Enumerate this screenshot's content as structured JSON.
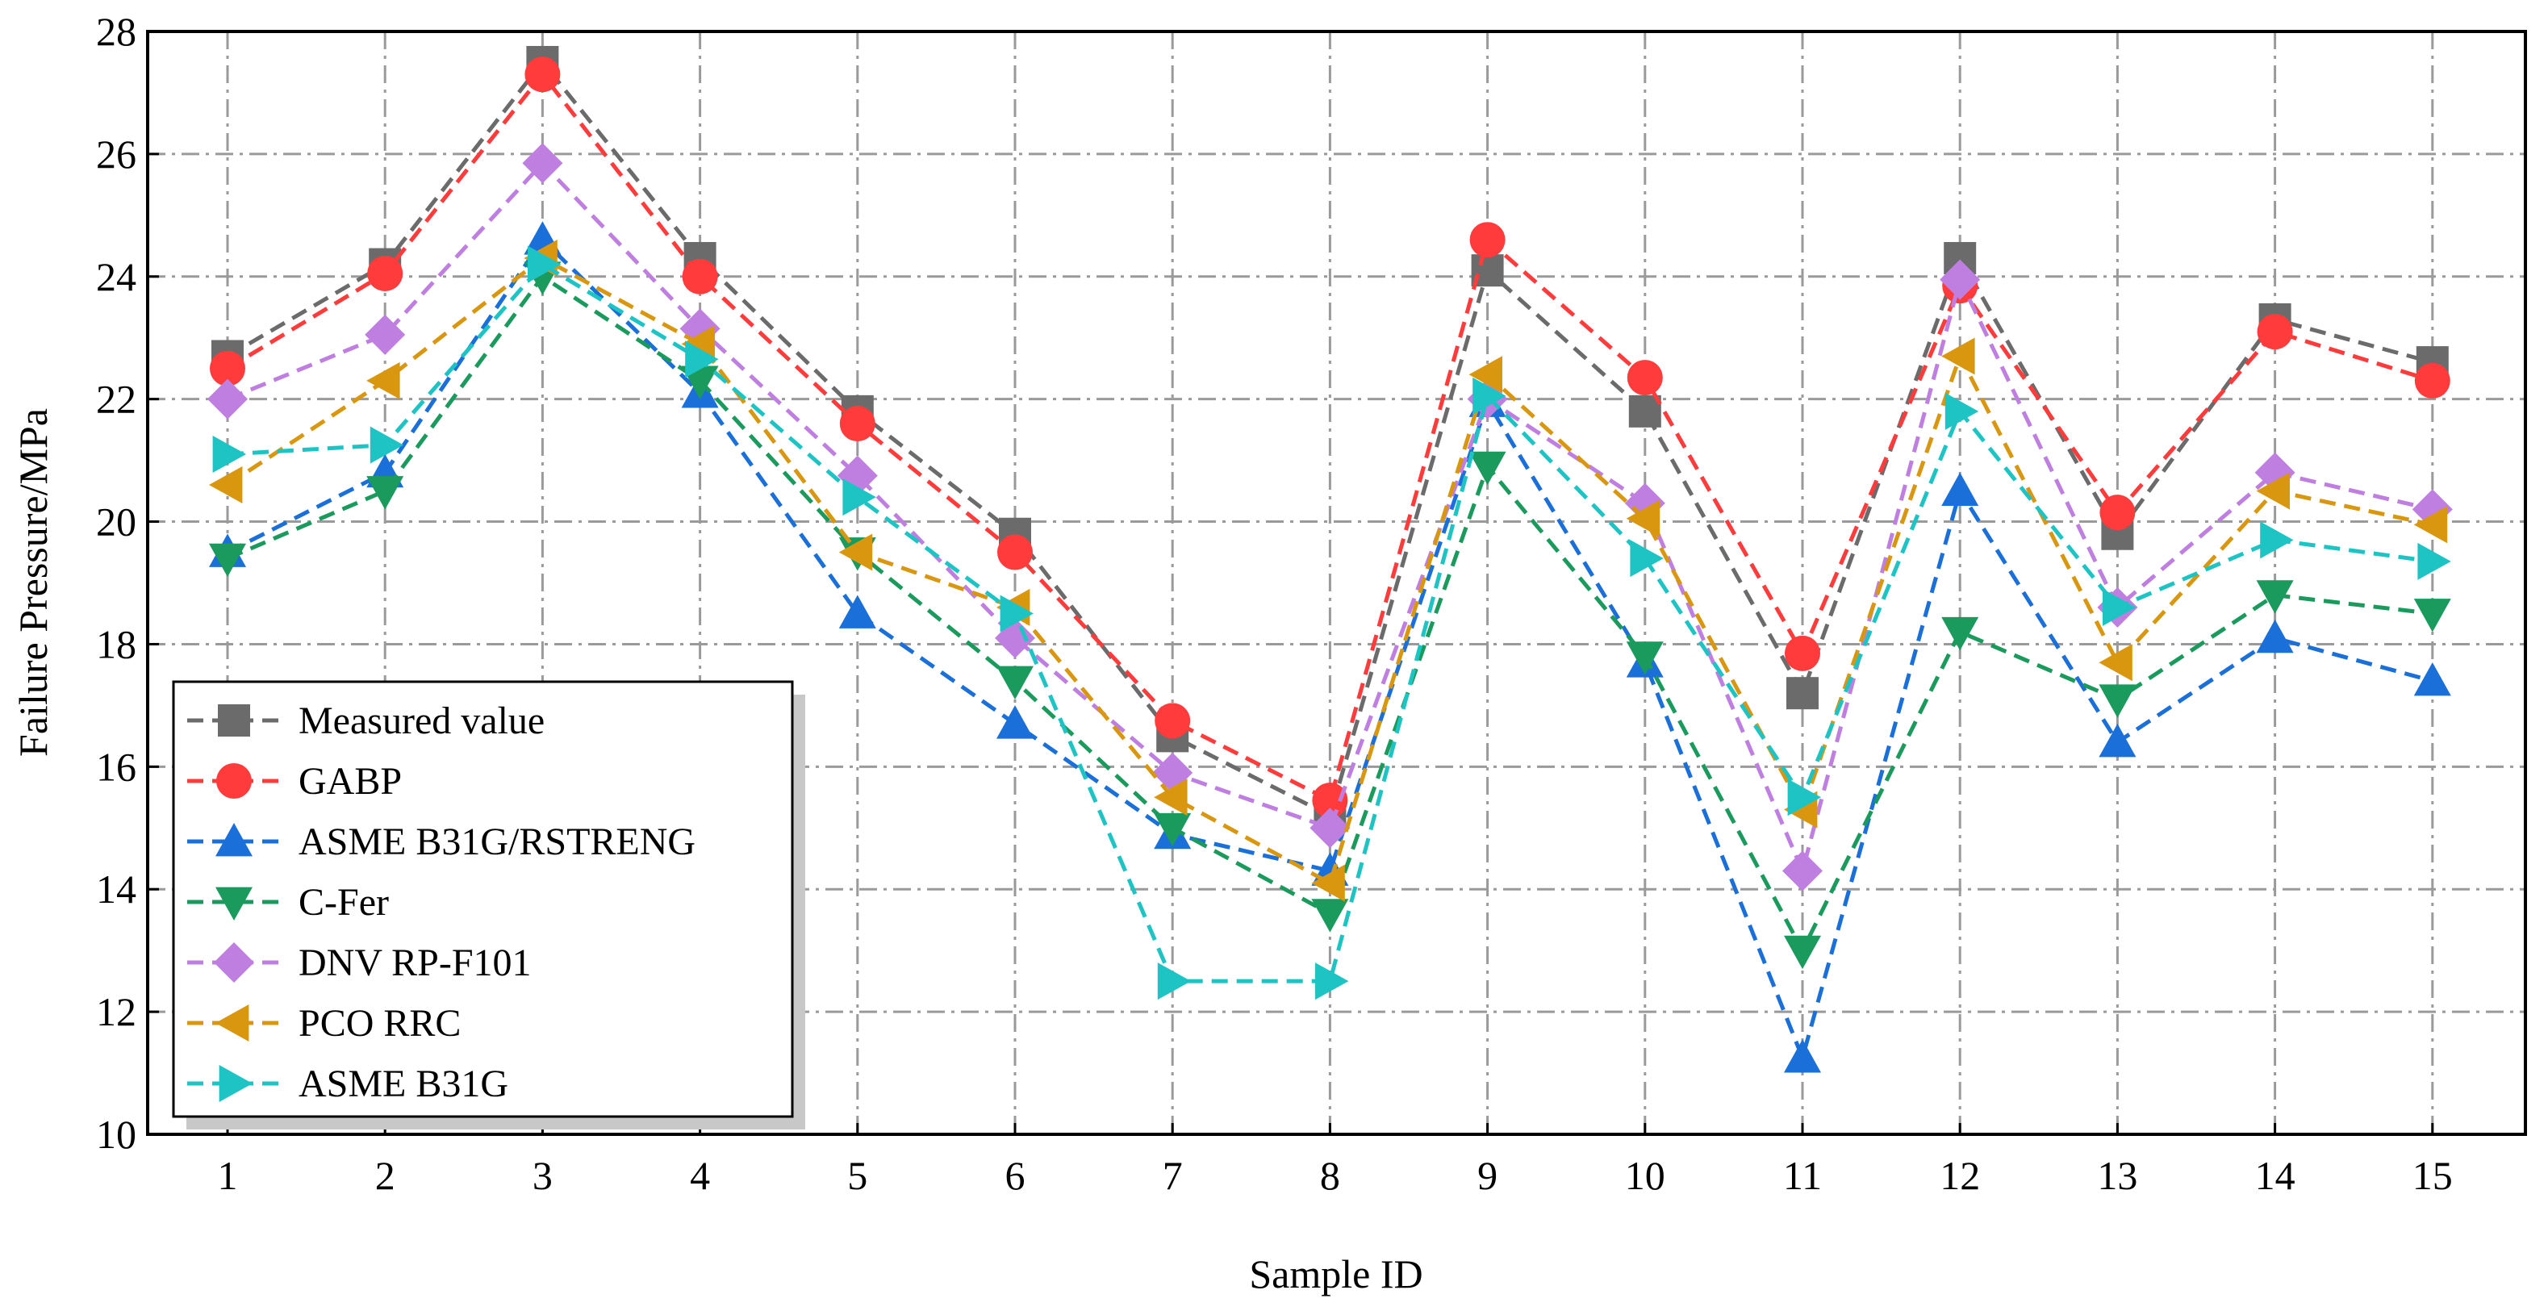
{
  "chart_data": {
    "type": "line",
    "title": "",
    "xlabel": "Sample ID",
    "ylabel": "Failure Pressure/MPa",
    "categories": [
      "1",
      "2",
      "3",
      "4",
      "5",
      "6",
      "7",
      "8",
      "9",
      "10",
      "11",
      "12",
      "13",
      "14",
      "15"
    ],
    "ylim": [
      10,
      28
    ],
    "yticks": [
      "10",
      "12",
      "14",
      "16",
      "18",
      "20",
      "22",
      "24",
      "26",
      "28"
    ],
    "grid": true,
    "legend_position": "bottom-left",
    "series": [
      {
        "name": "Measured value",
        "color": "#6b6b6b",
        "marker": "square",
        "values": [
          22.7,
          24.2,
          27.5,
          24.3,
          21.8,
          19.8,
          16.5,
          15.2,
          24.1,
          21.8,
          17.2,
          24.3,
          19.8,
          23.3,
          22.6
        ]
      },
      {
        "name": "GABP",
        "color": "#ff3b3b",
        "marker": "circle",
        "values": [
          22.5,
          24.05,
          27.3,
          24.0,
          21.6,
          19.5,
          16.75,
          15.45,
          24.6,
          22.35,
          17.85,
          23.85,
          20.15,
          23.1,
          22.3
        ]
      },
      {
        "name": "ASME B31G/RSTRENG",
        "color": "#1a6fd9",
        "marker": "triangle-up",
        "values": [
          19.5,
          20.8,
          24.6,
          22.1,
          18.5,
          16.7,
          14.9,
          14.3,
          21.95,
          17.7,
          11.25,
          20.5,
          16.4,
          18.1,
          17.4
        ]
      },
      {
        "name": "C-Fer",
        "color": "#1a9a5c",
        "marker": "triangle-down",
        "values": [
          19.4,
          20.5,
          24.0,
          22.3,
          19.5,
          17.4,
          15.0,
          13.6,
          20.9,
          17.8,
          13.0,
          18.2,
          17.1,
          18.8,
          18.5
        ]
      },
      {
        "name": "DNV RP-F101",
        "color": "#bf7fe0",
        "marker": "diamond",
        "values": [
          22.0,
          23.05,
          25.85,
          23.15,
          20.75,
          18.1,
          15.9,
          15.0,
          22.0,
          20.3,
          14.3,
          23.95,
          18.6,
          20.8,
          20.2
        ]
      },
      {
        "name": "PCO RRC",
        "color": "#d9960f",
        "marker": "triangle-left",
        "values": [
          20.6,
          22.3,
          24.3,
          22.9,
          19.5,
          18.6,
          15.5,
          14.1,
          22.4,
          20.05,
          15.3,
          22.7,
          17.7,
          20.5,
          19.95
        ]
      },
      {
        "name": "ASME B31G",
        "color": "#1ec4c4",
        "marker": "triangle-right",
        "values": [
          21.1,
          21.25,
          24.2,
          22.65,
          20.4,
          18.5,
          12.5,
          12.5,
          22.05,
          19.4,
          15.5,
          21.8,
          18.6,
          19.7,
          19.35
        ]
      }
    ]
  }
}
